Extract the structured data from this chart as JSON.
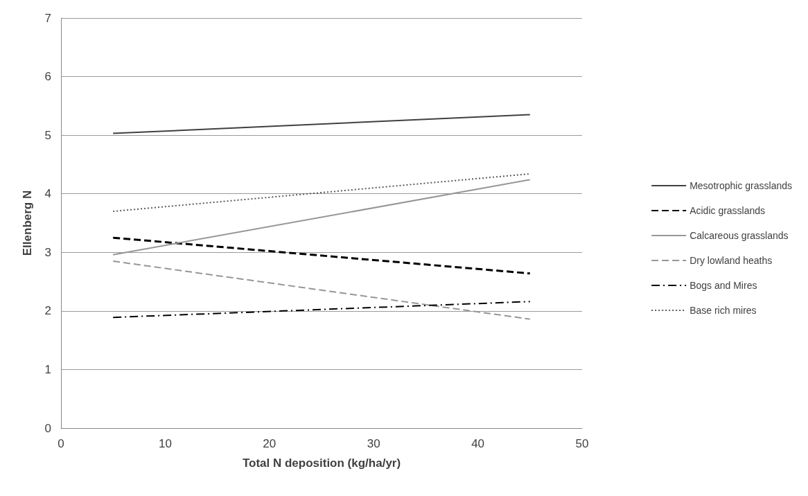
{
  "chart_data": {
    "type": "line",
    "xlabel": "Total N deposition (kg/ha/yr)",
    "ylabel": "Ellenberg N",
    "x": [
      5,
      45
    ],
    "xlim": [
      0,
      50
    ],
    "xticks": [
      0,
      10,
      20,
      30,
      40,
      50
    ],
    "ylim": [
      0,
      7
    ],
    "yticks": [
      0,
      1,
      2,
      3,
      4,
      5,
      6,
      7
    ],
    "grid": "y",
    "legend": "right",
    "marker": "none",
    "series": [
      {
        "name": "Mesotrophic grasslands",
        "color": "#404040",
        "line_style": "solid",
        "values": [
          5.03,
          5.35
        ]
      },
      {
        "name": "Acidic grasslands",
        "color": "#000000",
        "line_style": "dashed",
        "values": [
          3.25,
          2.64
        ]
      },
      {
        "name": "Calcareous grasslands",
        "color": "#969696",
        "line_style": "solid",
        "values": [
          2.96,
          4.24
        ]
      },
      {
        "name": "Dry lowland heaths",
        "color": "#969696",
        "line_style": "dashed",
        "values": [
          2.85,
          1.86
        ]
      },
      {
        "name": "Bogs and Mires",
        "color": "#000000",
        "line_style": "dashdot",
        "values": [
          1.89,
          2.16
        ]
      },
      {
        "name": "Base rich mires",
        "color": "#595959",
        "line_style": "dotted",
        "values": [
          3.7,
          4.34
        ]
      }
    ]
  }
}
